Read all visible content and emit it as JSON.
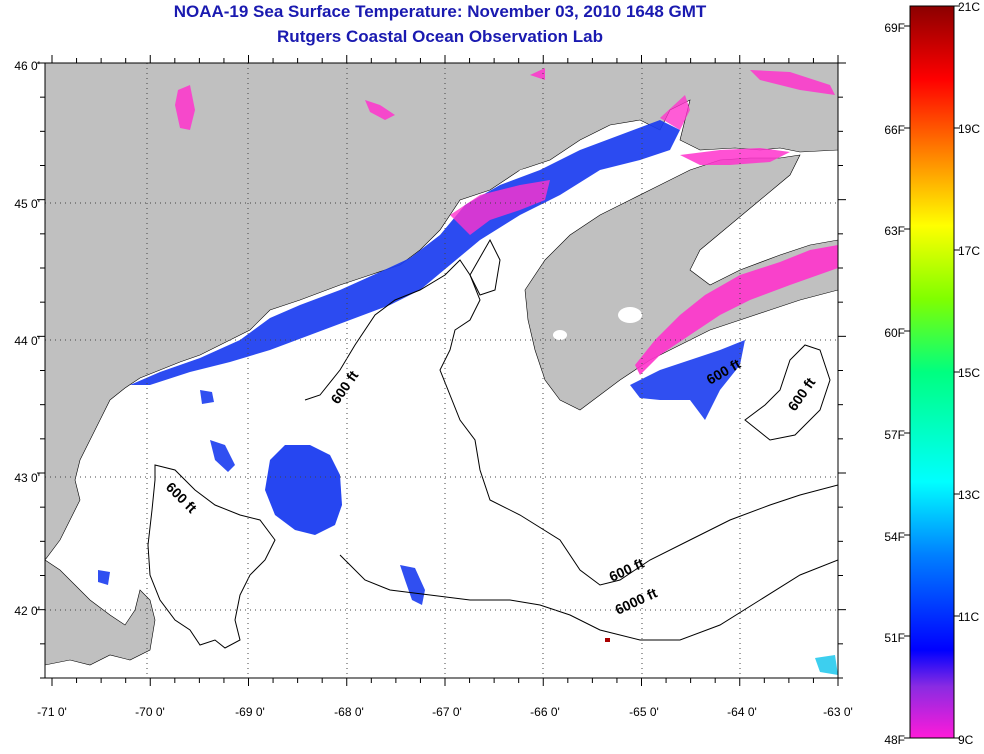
{
  "title": {
    "line1": "NOAA-19 Sea Surface Temperature:  November 03, 2010 1648 GMT",
    "line2": "Rutgers Coastal Ocean Observation Lab"
  },
  "map": {
    "longitude_ticks": [
      "-71 0'",
      "-70 0'",
      "-69 0'",
      "-68 0'",
      "-67 0'",
      "-66 0'",
      "-65 0'",
      "-64 0'",
      "-63 0'"
    ],
    "latitude_ticks": [
      "46 0'",
      "45 0'",
      "44 0'",
      "43 0'",
      "42 0'"
    ],
    "contour_labels": [
      "600 ft",
      "600 ft",
      "600 ft",
      "600 ft",
      "600 ft",
      "6000 ft"
    ],
    "colors": {
      "land": "#c0c0c0",
      "ocean_no_data": "#ffffff",
      "cold_blue": "#1a3cf0",
      "cold_magenta": "#ff33cc",
      "cyan": "#33ccee",
      "warm_red": "#aa0000"
    }
  },
  "colorbar": {
    "fahrenheit_labels": [
      "69F",
      "66F",
      "63F",
      "60F",
      "57F",
      "54F",
      "51F",
      "48F"
    ],
    "celsius_labels": [
      "21C",
      "19C",
      "17C",
      "15C",
      "13C",
      "11C",
      "9C"
    ],
    "range_celsius": [
      9,
      21
    ],
    "range_fahrenheit": [
      48,
      70
    ]
  }
}
